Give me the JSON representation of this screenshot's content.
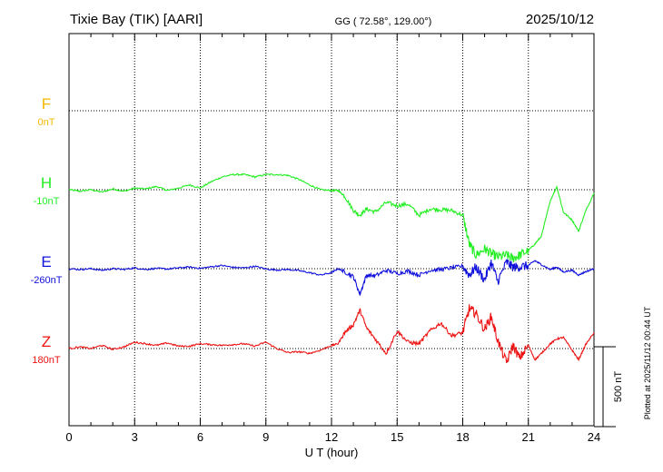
{
  "header": {
    "station": "Tixie Bay (TIK)  [AARI]",
    "coords": "GG ( 72.58°, 129.00°)",
    "date": "2025/10/12"
  },
  "footer": {
    "plotted": "Plotted at 2025/11/12 00:44 UT"
  },
  "chart_data": {
    "type": "line",
    "xlabel": "U T (hour)",
    "xlim": [
      0,
      24
    ],
    "xticks": [
      "0",
      "3",
      "6",
      "9",
      "12",
      "15",
      "18",
      "21",
      "24"
    ],
    "grid": true,
    "scale_bar": {
      "label": "500 nT",
      "value": 500
    },
    "colors": {
      "F": "#f2b800",
      "H": "#22ee22",
      "E": "#1010dd",
      "Z": "#ee1111"
    },
    "series": [
      {
        "name": "F",
        "baseline_label": "0nT",
        "x": [],
        "y": []
      },
      {
        "name": "H",
        "baseline_label": "-10nT",
        "x": [
          0,
          0.5,
          1,
          1.5,
          2,
          2.5,
          3,
          3.5,
          4,
          4.5,
          5,
          5.5,
          6,
          6.5,
          7,
          7.5,
          8,
          8.5,
          9,
          9.5,
          10,
          10.5,
          11,
          11.5,
          12,
          12.3,
          12.6,
          13,
          13.3,
          13.6,
          14,
          14.5,
          15,
          15.5,
          16,
          16.5,
          17,
          17.5,
          18,
          18.3,
          18.6,
          19,
          19.3,
          19.6,
          20,
          20.3,
          20.6,
          21,
          21.3,
          21.6,
          22,
          22.3,
          22.6,
          23,
          23.3,
          23.6,
          24
        ],
        "y": [
          -10,
          -20,
          -10,
          -25,
          -5,
          -20,
          0,
          -5,
          10,
          -15,
          0,
          20,
          0,
          40,
          70,
          85,
          85,
          70,
          85,
          85,
          80,
          55,
          20,
          -10,
          -15,
          -15,
          -50,
          -140,
          -170,
          -130,
          -150,
          -90,
          -110,
          -100,
          -170,
          -130,
          -135,
          -140,
          -170,
          -350,
          -420,
          -380,
          -410,
          -430,
          -420,
          -440,
          -420,
          -390,
          -350,
          -300,
          -80,
          10,
          -150,
          -200,
          -270,
          -150,
          -30
        ]
      },
      {
        "name": "E",
        "baseline_label": "-260nT",
        "x": [
          0,
          0.5,
          1,
          1.5,
          2,
          2.5,
          3,
          3.5,
          4,
          4.5,
          5,
          5.5,
          6,
          6.5,
          7,
          7.5,
          8,
          8.5,
          9,
          9.5,
          10,
          10.5,
          11,
          11.5,
          12,
          12.3,
          12.6,
          13,
          13.3,
          13.6,
          14,
          14.5,
          15,
          15.5,
          16,
          16.5,
          17,
          17.5,
          18,
          18.3,
          18.6,
          19,
          19.3,
          19.6,
          20,
          20.3,
          20.6,
          21,
          21.3,
          21.6,
          22,
          22.3,
          22.6,
          23,
          23.3,
          23.6,
          24
        ],
        "y": [
          -260,
          -265,
          -260,
          -270,
          -260,
          -265,
          -255,
          -265,
          -258,
          -262,
          -255,
          -250,
          -258,
          -248,
          -240,
          -252,
          -255,
          -245,
          -262,
          -268,
          -265,
          -272,
          -285,
          -300,
          -285,
          -260,
          -280,
          -310,
          -420,
          -300,
          -305,
          -270,
          -290,
          -275,
          -300,
          -270,
          -265,
          -255,
          -245,
          -300,
          -250,
          -330,
          -220,
          -340,
          -220,
          -250,
          -250,
          -240,
          -210,
          -235,
          -265,
          -250,
          -280,
          -270,
          -300,
          -280,
          -260
        ]
      },
      {
        "name": "Z",
        "baseline_label": "180nT",
        "x": [
          0,
          0.5,
          1,
          1.5,
          2,
          2.5,
          3,
          3.5,
          4,
          4.5,
          5,
          5.5,
          6,
          6.5,
          7,
          7.5,
          8,
          8.5,
          9,
          9.5,
          10,
          10.5,
          11,
          11.5,
          12,
          12.3,
          12.6,
          13,
          13.3,
          13.6,
          14,
          14.5,
          15,
          15.5,
          16,
          16.5,
          17,
          17.5,
          18,
          18.3,
          18.6,
          19,
          19.3,
          19.6,
          20,
          20.3,
          20.6,
          21,
          21.3,
          21.6,
          22,
          22.3,
          22.6,
          23,
          23.3,
          23.6,
          24
        ],
        "y": [
          180,
          190,
          180,
          200,
          175,
          190,
          220,
          210,
          200,
          215,
          195,
          195,
          210,
          205,
          200,
          205,
          210,
          195,
          220,
          180,
          155,
          160,
          150,
          170,
          200,
          210,
          280,
          330,
          420,
          310,
          240,
          150,
          290,
          220,
          210,
          290,
          340,
          260,
          280,
          430,
          400,
          300,
          380,
          230,
          90,
          200,
          120,
          200,
          110,
          150,
          210,
          240,
          250,
          170,
          110,
          200,
          280
        ]
      }
    ]
  }
}
